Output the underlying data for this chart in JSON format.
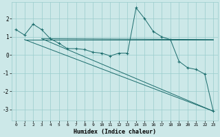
{
  "xlabel": "Humidex (Indice chaleur)",
  "bg_color": "#cce8e8",
  "grid_color": "#99cccc",
  "line_color": "#1a6b6b",
  "xlim": [
    -0.5,
    23.5
  ],
  "ylim": [
    -3.6,
    2.9
  ],
  "xticks": [
    0,
    1,
    2,
    3,
    4,
    5,
    6,
    7,
    8,
    9,
    10,
    11,
    12,
    13,
    14,
    15,
    16,
    17,
    18,
    19,
    20,
    21,
    22,
    23
  ],
  "yticks": [
    -3,
    -2,
    -1,
    0,
    1,
    2
  ],
  "series1_x": [
    0,
    1,
    2,
    3,
    4,
    5,
    6,
    7,
    8,
    9,
    10,
    11,
    12,
    13,
    14,
    15,
    16,
    17,
    18,
    19,
    20,
    21,
    22,
    23
  ],
  "series1_y": [
    1.4,
    1.1,
    1.7,
    1.4,
    0.9,
    0.65,
    0.35,
    0.35,
    0.3,
    0.15,
    0.1,
    -0.05,
    0.1,
    0.1,
    2.6,
    2.0,
    1.3,
    1.0,
    0.85,
    -0.35,
    -0.7,
    -0.8,
    -1.05,
    -3.1
  ],
  "line1_x": [
    1,
    23
  ],
  "line1_y": [
    0.85,
    0.85
  ],
  "line2_x": [
    1,
    23
  ],
  "line2_y": [
    0.85,
    -3.1
  ],
  "line3_x": [
    3,
    23
  ],
  "line3_y": [
    0.9,
    -3.1
  ],
  "line4_x": [
    3,
    23
  ],
  "line4_y": [
    0.9,
    0.85
  ]
}
